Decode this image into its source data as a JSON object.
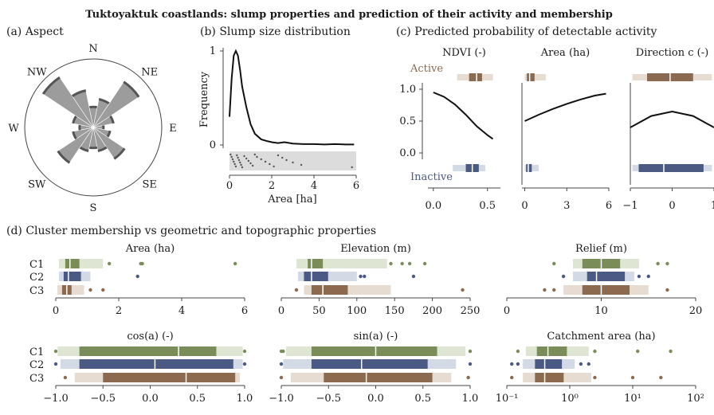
{
  "title": "Tuktoyaktuk coastlands: slump properties and prediction of their activity and membership",
  "colors": {
    "active": "#8a6a50",
    "inactive": "#4a5a80",
    "c1": "#7a8c58",
    "c1_light": "#dfe5d3",
    "c2": "#4b5a85",
    "c2_light": "#d4d9e6",
    "c3": "#8c6a4f",
    "c3_light": "#e6dcd2",
    "rose": "#9c9c9c",
    "rose_dark": "#555555",
    "axis": "#444444",
    "box_grey": "#dcdcdc"
  },
  "panels": {
    "a": {
      "label": "(a) Aspect",
      "compass": [
        "N",
        "NE",
        "E",
        "SE",
        "S",
        "SW",
        "W",
        "NW"
      ],
      "chart_data": {
        "type": "rose",
        "directions_deg": [
          0,
          22.5,
          45,
          67.5,
          90,
          112.5,
          135,
          157.5,
          180,
          202.5,
          225,
          247.5,
          270,
          292.5,
          315,
          337.5
        ],
        "values": [
          0.3,
          0.42,
          0.8,
          0.3,
          0.15,
          0.25,
          0.55,
          0.35,
          0.3,
          0.35,
          0.62,
          0.3,
          0.2,
          0.3,
          0.88,
          0.55
        ]
      }
    },
    "b": {
      "label": "(b) Slump size distribution",
      "chart_data": {
        "type": "line",
        "xlabel": "Area [ha]",
        "ylabel": "Frequency",
        "xlim": [
          0,
          6
        ],
        "ylim": [
          0,
          1
        ],
        "xticks": [
          "0",
          "2",
          "4",
          "6"
        ],
        "yticks": [
          "0",
          "1"
        ],
        "x": [
          0,
          0.1,
          0.2,
          0.3,
          0.4,
          0.5,
          0.6,
          0.8,
          1.0,
          1.2,
          1.5,
          1.8,
          2.0,
          2.3,
          2.6,
          3.0,
          3.5,
          4.0,
          4.5,
          5.0,
          5.5,
          5.9
        ],
        "y": [
          0.3,
          0.7,
          0.95,
          1.0,
          0.95,
          0.8,
          0.62,
          0.4,
          0.22,
          0.12,
          0.06,
          0.04,
          0.03,
          0.02,
          0.03,
          0.015,
          0.01,
          0.01,
          0.005,
          0.01,
          0.005,
          0.005
        ],
        "strip": [
          0.05,
          0.1,
          0.15,
          0.2,
          0.25,
          0.3,
          0.35,
          0.4,
          0.45,
          0.5,
          0.55,
          0.6,
          0.7,
          0.8,
          0.9,
          1.0,
          1.1,
          1.2,
          1.3,
          1.5,
          1.7,
          1.9,
          2.1,
          2.3,
          2.5,
          2.7,
          3.0,
          3.4,
          5.8
        ]
      }
    },
    "c": {
      "label": "(c) Predicted probability of detectable activity",
      "active_label": "Active",
      "inactive_label": "Inactive",
      "yticks": [
        "0.0",
        "0.5",
        "1.0"
      ],
      "chart_data": [
        {
          "type": "line",
          "title": "NDVI (-)",
          "xlim": [
            -0.05,
            0.62
          ],
          "xticks": [
            "0.0",
            "0.5"
          ],
          "x": [
            0,
            0.1,
            0.2,
            0.3,
            0.4,
            0.5,
            0.55
          ],
          "y": [
            0.95,
            0.88,
            0.76,
            0.6,
            0.42,
            0.28,
            0.22
          ],
          "active_box": {
            "whisker": [
              0.22,
              0.55
            ],
            "q1": 0.33,
            "median": 0.4,
            "q3": 0.45
          },
          "inactive_box": {
            "whisker": [
              0.18,
              0.48
            ],
            "q1": 0.3,
            "median": 0.36,
            "q3": 0.42
          }
        },
        {
          "type": "line",
          "title": "Area (ha)",
          "xlim": [
            -0.2,
            6
          ],
          "xticks": [
            "0",
            "3",
            "6"
          ],
          "x": [
            0,
            1,
            2,
            3,
            4,
            5,
            5.8
          ],
          "y": [
            0.5,
            0.6,
            0.69,
            0.77,
            0.84,
            0.9,
            0.93
          ],
          "active_box": {
            "whisker": [
              0,
              1.5
            ],
            "q1": 0.15,
            "median": 0.35,
            "q3": 0.7
          },
          "inactive_box": {
            "whisker": [
              0,
              1.0
            ],
            "q1": 0.1,
            "median": 0.25,
            "q3": 0.5
          }
        },
        {
          "type": "line",
          "title": "Direction c (-)",
          "xlim": [
            -1,
            1
          ],
          "xticks": [
            "−1",
            "0",
            "1"
          ],
          "x": [
            -1,
            -0.5,
            0,
            0.5,
            1
          ],
          "y": [
            0.4,
            0.58,
            0.65,
            0.58,
            0.4
          ],
          "active_box": {
            "whisker": [
              -0.95,
              0.95
            ],
            "q1": -0.6,
            "median": -0.05,
            "q3": 0.5
          },
          "inactive_box": {
            "whisker": [
              -0.95,
              0.95
            ],
            "q1": -0.8,
            "median": -0.2,
            "q3": 0.75
          }
        }
      ]
    },
    "d": {
      "label": "(d) Cluster membership vs geometric and topographic properties",
      "cluster_labels": [
        "C1",
        "C2",
        "C3"
      ],
      "chart_data": [
        {
          "type": "box",
          "title": "Area (ha)",
          "xlim": [
            0,
            6
          ],
          "scale": "linear",
          "xticks": [
            0,
            2,
            4,
            6
          ],
          "xtick_labels": [
            "0",
            "2",
            "4",
            "6"
          ],
          "boxes": [
            {
              "whisker": [
                0.1,
                1.5
              ],
              "q1": 0.3,
              "median": 0.45,
              "q3": 0.75,
              "outliers": [
                1.7,
                2.7,
                2.75,
                5.7
              ]
            },
            {
              "whisker": [
                0.1,
                1.1
              ],
              "q1": 0.25,
              "median": 0.4,
              "q3": 0.8,
              "outliers": [
                2.6
              ]
            },
            {
              "whisker": [
                0.05,
                0.9
              ],
              "q1": 0.2,
              "median": 0.35,
              "q3": 0.5,
              "outliers": [
                1.1,
                1.5
              ]
            }
          ]
        },
        {
          "type": "box",
          "title": "Elevation (m)",
          "xlim": [
            0,
            250
          ],
          "scale": "linear",
          "xticks": [
            0,
            50,
            100,
            150,
            200,
            250
          ],
          "xtick_labels": [
            "0",
            "50",
            "100",
            "150",
            "200",
            "250"
          ],
          "boxes": [
            {
              "whisker": [
                20,
                140
              ],
              "q1": 35,
              "median": 40,
              "q3": 55,
              "outliers": [
                145,
                160,
                170,
                190
              ]
            },
            {
              "whisker": [
                22,
                100
              ],
              "q1": 30,
              "median": 40,
              "q3": 62,
              "outliers": [
                105,
                110,
                175
              ]
            },
            {
              "whisker": [
                30,
                145
              ],
              "q1": 40,
              "median": 55,
              "q3": 88,
              "outliers": [
                20,
                240
              ]
            }
          ]
        },
        {
          "type": "box",
          "title": "Relief (m)",
          "xlim": [
            0,
            20
          ],
          "scale": "linear",
          "xticks": [
            0,
            10,
            20
          ],
          "xtick_labels": [
            "0",
            "10",
            "20"
          ],
          "boxes": [
            {
              "whisker": [
                7,
                14
              ],
              "q1": 8,
              "median": 10,
              "q3": 12,
              "outliers": [
                5,
                16,
                17
              ]
            },
            {
              "whisker": [
                7,
                13.5
              ],
              "q1": 8.5,
              "median": 9.5,
              "q3": 12.5,
              "outliers": [
                6,
                14,
                15
              ]
            },
            {
              "whisker": [
                6,
                15
              ],
              "q1": 8,
              "median": 10,
              "q3": 13,
              "outliers": [
                4,
                5,
                17
              ]
            }
          ]
        },
        {
          "type": "box",
          "title": "cos(a) (-)",
          "xlim": [
            -1,
            1
          ],
          "scale": "linear",
          "xticks": [
            -1,
            -0.5,
            0,
            0.5,
            1
          ],
          "xtick_labels": [
            "−1.0",
            "−0.5",
            "0.0",
            "0.5",
            "1.0"
          ],
          "boxes": [
            {
              "whisker": [
                -0.98,
                0.98
              ],
              "q1": -0.75,
              "median": 0.3,
              "q3": 0.7,
              "outliers": [
                -1,
                1
              ]
            },
            {
              "whisker": [
                -0.95,
                0.98
              ],
              "q1": -0.75,
              "median": 0.05,
              "q3": 0.88,
              "outliers": [
                -1,
                1
              ]
            },
            {
              "whisker": [
                -0.8,
                0.95
              ],
              "q1": -0.5,
              "median": 0.38,
              "q3": 0.9,
              "outliers": [
                -0.9
              ]
            }
          ]
        },
        {
          "type": "box",
          "title": "sin(a) (-)",
          "xlim": [
            -1,
            1
          ],
          "scale": "linear",
          "xticks": [
            -1,
            -0.5,
            0,
            0.5,
            1
          ],
          "xtick_labels": [
            "−1.0",
            "−0.5",
            "0.0",
            "0.5",
            "1.0"
          ],
          "boxes": [
            {
              "whisker": [
                -0.95,
                0.95
              ],
              "q1": -0.68,
              "median": 0.0,
              "q3": 0.65,
              "outliers": [
                -1,
                -0.98,
                1
              ]
            },
            {
              "whisker": [
                -0.98,
                0.85
              ],
              "q1": -0.68,
              "median": -0.15,
              "q3": 0.55,
              "outliers": [
                -1,
                1
              ]
            },
            {
              "whisker": [
                -0.9,
                0.8
              ],
              "q1": -0.55,
              "median": -0.1,
              "q3": 0.6,
              "outliers": [
                -1,
                0.98
              ]
            }
          ]
        },
        {
          "type": "box",
          "title": "Catchment area (ha)",
          "xlim": [
            -1,
            2
          ],
          "scale": "log",
          "xticks": [
            -1,
            0,
            1,
            2
          ],
          "xtick_labels": [
            "10⁻¹",
            "10⁰",
            "10¹",
            "10²"
          ],
          "boxes": [
            {
              "whisker": [
                0.2,
                2.0
              ],
              "q1": 0.3,
              "median": 0.45,
              "q3": 0.9,
              "outliers": [
                0.15,
                2.5,
                12,
                40
              ]
            },
            {
              "whisker": [
                0.18,
                1.2
              ],
              "q1": 0.28,
              "median": 0.4,
              "q3": 0.75,
              "outliers": [
                0.12,
                0.15,
                1.5,
                2
              ]
            },
            {
              "whisker": [
                0.18,
                2.2
              ],
              "q1": 0.28,
              "median": 0.4,
              "q3": 0.8,
              "outliers": [
                0.12,
                2.5,
                10,
                28
              ]
            }
          ]
        }
      ]
    }
  }
}
